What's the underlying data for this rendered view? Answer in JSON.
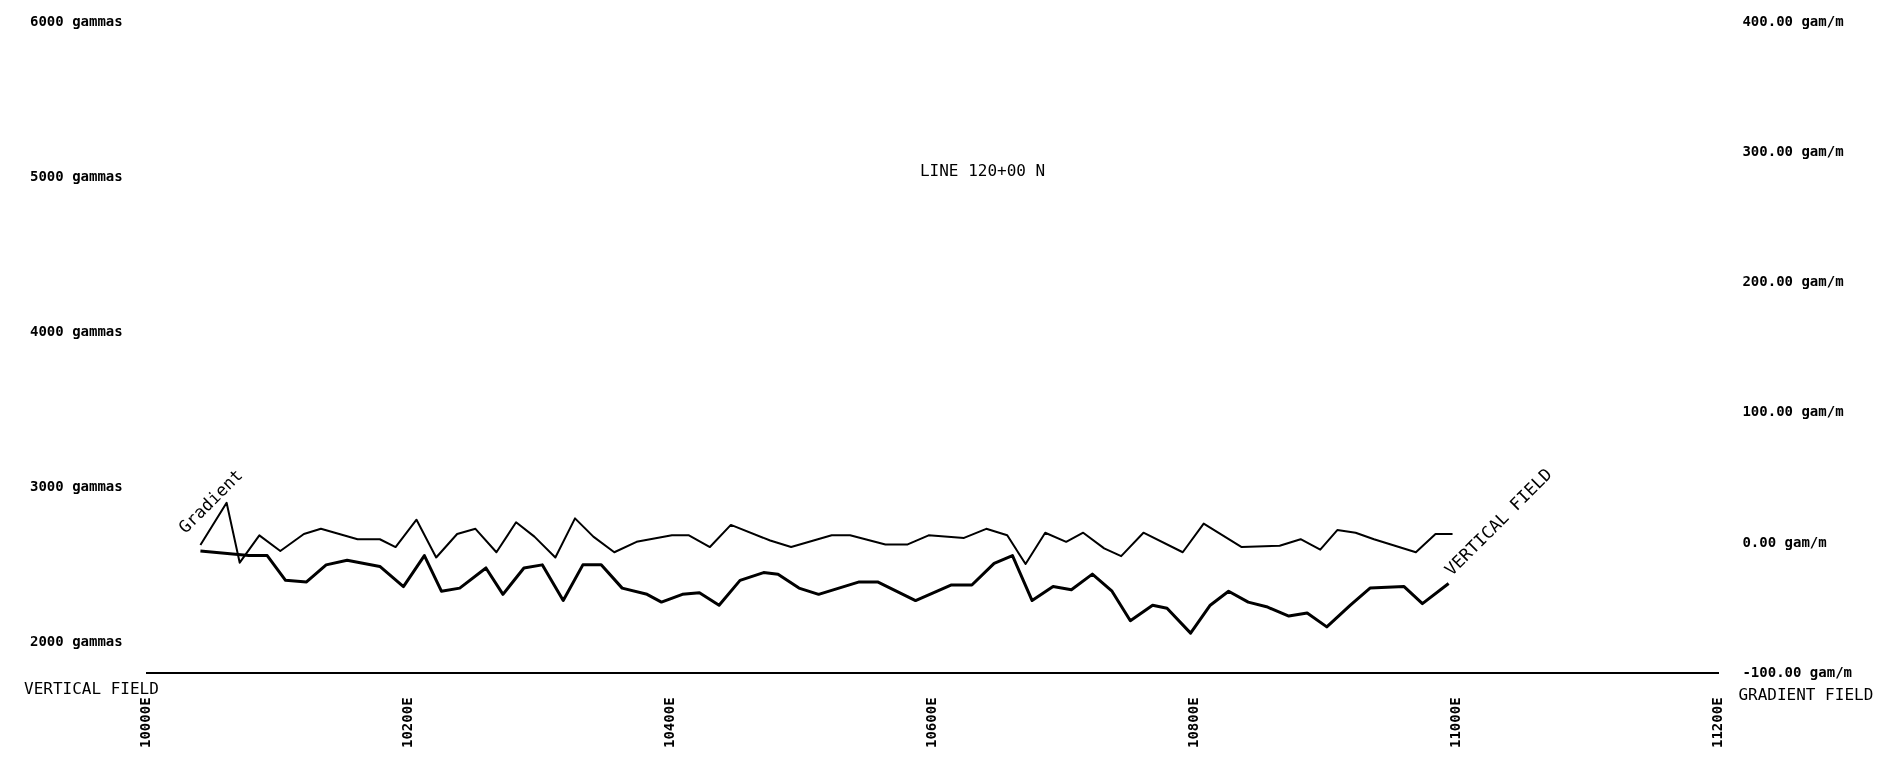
{
  "chart_data": {
    "type": "line",
    "title": "LINE 120+00 N",
    "ylabel": "VERTICAL FIELD",
    "y2label": "GRADIENT FIELD",
    "xlim": [
      10000,
      11200
    ],
    "xticks": [
      {
        "value": 10000,
        "label": "10000E"
      },
      {
        "value": 10200,
        "label": "10200E"
      },
      {
        "value": 10400,
        "label": "10400E"
      },
      {
        "value": 10600,
        "label": "10600E"
      },
      {
        "value": 10800,
        "label": "10800E"
      },
      {
        "value": 11000,
        "label": "11000E"
      },
      {
        "value": 11200,
        "label": "11200E"
      }
    ],
    "ylim": [
      1800,
      6000
    ],
    "yticks": [
      {
        "value": 2000,
        "label": "2000 gammas"
      },
      {
        "value": 3000,
        "label": "3000 gammas"
      },
      {
        "value": 4000,
        "label": "4000 gammas"
      },
      {
        "value": 5000,
        "label": "5000 gammas"
      },
      {
        "value": 6000,
        "label": "6000 gammas"
      }
    ],
    "y2lim": [
      -100,
      400
    ],
    "y2ticks": [
      {
        "value": -100,
        "label": "-100.00 gam/m"
      },
      {
        "value": 0,
        "label": "0.00 gam/m"
      },
      {
        "value": 100,
        "label": "100.00 gam/m"
      },
      {
        "value": 200,
        "label": "200.00 gam/m"
      },
      {
        "value": 300,
        "label": "300.00 gam/m"
      },
      {
        "value": 400,
        "label": "400.00 gam/m"
      }
    ],
    "grid": false,
    "legend": false,
    "marker": "none",
    "line_style": "solid",
    "series": [
      {
        "name": "Gradient",
        "color": "#000000",
        "axis": "y2",
        "x": [
          10041,
          10061,
          10071,
          10086,
          10102,
          10120,
          10133,
          10161,
          10178,
          10190,
          10206,
          10221,
          10237,
          10251,
          10267,
          10282,
          10296,
          10312,
          10327,
          10341,
          10357,
          10374,
          10401,
          10414,
          10430,
          10446,
          10476,
          10492,
          10523,
          10537,
          10564,
          10581,
          10597,
          10624,
          10641,
          10657,
          10671,
          10686,
          10702,
          10715,
          10731,
          10744,
          10761,
          10791,
          10807,
          10836,
          10865,
          10881,
          10896,
          10909,
          10923,
          10937,
          10969,
          10984,
          10997
        ],
        "values": [
          -1.5,
          31,
          -15,
          6,
          -6,
          7,
          11,
          3,
          3,
          -3,
          18,
          -11,
          7,
          11,
          -7,
          16,
          5,
          -11,
          19,
          5,
          -7,
          1,
          6,
          6,
          -3,
          14,
          2,
          -3,
          6,
          6,
          -1,
          -1,
          6,
          4,
          11,
          6,
          -16,
          8,
          1,
          8,
          -4,
          -10,
          8,
          -7,
          15,
          -3,
          -2,
          3,
          -5,
          10,
          8,
          3,
          -7,
          7,
          7
        ]
      },
      {
        "name": "VERTICAL FIELD",
        "color": "#000000",
        "x": [
          10041,
          10078,
          10092,
          10106,
          10122,
          10137,
          10153,
          10178,
          10196,
          10212,
          10225,
          10239,
          10259,
          10272,
          10288,
          10302,
          10318,
          10333,
          10347,
          10363,
          10382,
          10393,
          10409,
          10422,
          10437,
          10453,
          10471,
          10482,
          10498,
          10513,
          10544,
          10558,
          10587,
          10614,
          10630,
          10647,
          10661,
          10676,
          10692,
          10706,
          10722,
          10737,
          10751,
          10768,
          10779,
          10797,
          10812,
          10826,
          10841,
          10855,
          10872,
          10886,
          10901,
          10919,
          10934,
          10960,
          10974,
          10994
        ],
        "values": [
          2590,
          2560,
          2560,
          2400,
          2390,
          2500,
          2530,
          2490,
          2360,
          2560,
          2330,
          2350,
          2480,
          2310,
          2480,
          2500,
          2270,
          2500,
          2500,
          2350,
          2310,
          2260,
          2310,
          2320,
          2240,
          2400,
          2450,
          2440,
          2350,
          2310,
          2390,
          2390,
          2270,
          2370,
          2370,
          2510,
          2560,
          2270,
          2360,
          2340,
          2440,
          2330,
          2140,
          2240,
          2220,
          2060,
          2240,
          2330,
          2260,
          2230,
          2170,
          2190,
          2100,
          2240,
          2350,
          2360,
          2250,
          2380
        ]
      }
    ]
  }
}
